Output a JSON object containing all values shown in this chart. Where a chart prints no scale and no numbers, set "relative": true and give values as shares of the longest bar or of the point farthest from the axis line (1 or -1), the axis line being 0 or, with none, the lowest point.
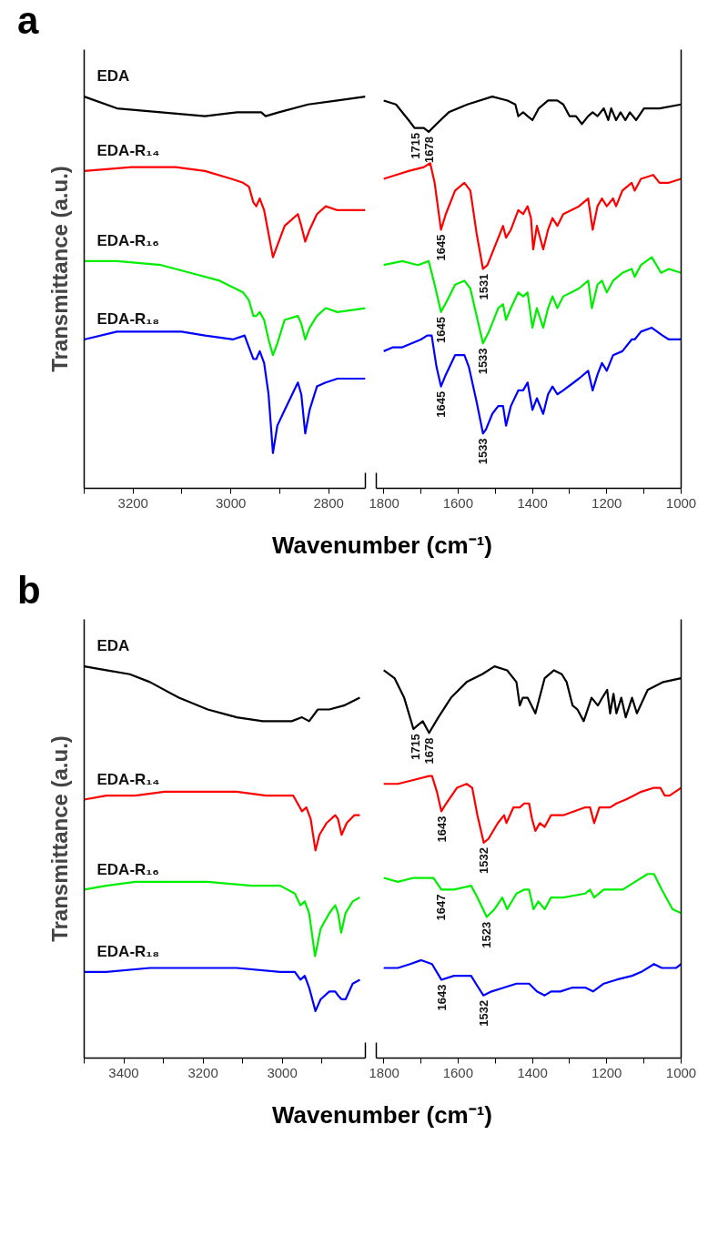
{
  "chart_data": [
    {
      "type": "line",
      "title": "a",
      "ylabel": "Transmittance (a.u.)",
      "xlabel": "Wavenumber (cm⁻¹)",
      "relative": true,
      "xlim": [
        3300,
        2725
      ],
      "xticks": [
        {
          "value": 3300,
          "label": null
        },
        3200,
        {
          "value": 3100,
          "label": null
        },
        3000,
        {
          "value": 2900,
          "label": null
        },
        2800
      ],
      "series": [
        {
          "name": "EDA",
          "color": "#000000",
          "x": [
            3300,
            3233,
            3143,
            3053,
            2987,
            2938,
            2929,
            2902,
            2842,
            2782,
            2725
          ],
          "values": [
            1.0,
            0.97,
            0.96,
            0.95,
            0.96,
            0.96,
            0.95,
            0.96,
            0.98,
            0.99,
            1.0
          ]
        },
        {
          "name": "EDA-R₁₄",
          "color": "#ff0000",
          "x": [
            3300,
            3203,
            3113,
            3053,
            2999,
            2975,
            2963,
            2954,
            2948,
            2941,
            2932,
            2923,
            2914,
            2905,
            2890,
            2863,
            2856,
            2848,
            2839,
            2824,
            2806,
            2782,
            2725
          ],
          "values": [
            0.81,
            0.82,
            0.82,
            0.81,
            0.79,
            0.78,
            0.77,
            0.73,
            0.72,
            0.74,
            0.71,
            0.65,
            0.59,
            0.62,
            0.67,
            0.7,
            0.67,
            0.63,
            0.66,
            0.7,
            0.72,
            0.71,
            0.71
          ]
        },
        {
          "name": "EDA-R₁₆",
          "color": "#00ee00",
          "x": [
            3300,
            3233,
            3143,
            3083,
            3023,
            2975,
            2963,
            2954,
            2948,
            2941,
            2932,
            2923,
            2914,
            2905,
            2890,
            2863,
            2856,
            2848,
            2839,
            2824,
            2806,
            2782,
            2725
          ],
          "values": [
            0.58,
            0.58,
            0.57,
            0.55,
            0.53,
            0.5,
            0.48,
            0.44,
            0.44,
            0.45,
            0.43,
            0.38,
            0.34,
            0.37,
            0.43,
            0.44,
            0.42,
            0.38,
            0.41,
            0.44,
            0.46,
            0.45,
            0.46
          ]
        },
        {
          "name": "EDA-R₁₈",
          "color": "#0000ff",
          "x": [
            3300,
            3233,
            3143,
            3101,
            3053,
            2996,
            2972,
            2963,
            2954,
            2948,
            2941,
            2932,
            2923,
            2914,
            2905,
            2890,
            2863,
            2856,
            2848,
            2839,
            2824,
            2806,
            2782,
            2725
          ],
          "values": [
            0.38,
            0.4,
            0.4,
            0.4,
            0.39,
            0.38,
            0.39,
            0.36,
            0.33,
            0.33,
            0.35,
            0.32,
            0.24,
            0.09,
            0.16,
            0.2,
            0.27,
            0.24,
            0.14,
            0.2,
            0.26,
            0.27,
            0.28,
            0.28
          ]
        }
      ]
    },
    {
      "type": "line",
      "relative": true,
      "xlim": [
        1820,
        1000
      ],
      "xticks": [
        1800,
        {
          "value": 1700,
          "label": null
        },
        1600,
        {
          "value": 1500,
          "label": null
        },
        1400,
        {
          "value": 1300,
          "label": null
        },
        1200,
        {
          "value": 1100,
          "label": null
        },
        1000
      ],
      "series": [
        {
          "color": "#000000",
          "x": [
            1800,
            1767,
            1733,
            1717,
            1704,
            1692,
            1679,
            1658,
            1625,
            1575,
            1508,
            1467,
            1446,
            1438,
            1425,
            1413,
            1400,
            1383,
            1358,
            1333,
            1317,
            1300,
            1283,
            1267,
            1250,
            1238,
            1225,
            1208,
            1196,
            1188,
            1175,
            1163,
            1150,
            1138,
            1121,
            1100,
            1058,
            1000
          ],
          "values": [
            0.99,
            0.98,
            0.94,
            0.92,
            0.92,
            0.92,
            0.91,
            0.93,
            0.96,
            0.98,
            1.0,
            0.99,
            0.98,
            0.95,
            0.96,
            0.95,
            0.94,
            0.97,
            0.99,
            0.99,
            0.98,
            0.95,
            0.95,
            0.93,
            0.95,
            0.96,
            0.95,
            0.97,
            0.94,
            0.97,
            0.94,
            0.96,
            0.94,
            0.96,
            0.94,
            0.97,
            0.97,
            0.98
          ]
        },
        {
          "color": "#ff0000",
          "x": [
            1800,
            1767,
            1733,
            1692,
            1675,
            1663,
            1646,
            1633,
            1608,
            1583,
            1567,
            1550,
            1533,
            1521,
            1500,
            1479,
            1471,
            1458,
            1438,
            1425,
            1413,
            1404,
            1398,
            1388,
            1371,
            1358,
            1346,
            1333,
            1317,
            1275,
            1250,
            1238,
            1225,
            1213,
            1200,
            1183,
            1175,
            1158,
            1133,
            1125,
            1108,
            1075,
            1058,
            1046,
            1033,
            1000
          ],
          "values": [
            0.79,
            0.8,
            0.81,
            0.82,
            0.83,
            0.78,
            0.66,
            0.7,
            0.76,
            0.78,
            0.76,
            0.65,
            0.56,
            0.57,
            0.62,
            0.67,
            0.64,
            0.66,
            0.71,
            0.7,
            0.72,
            0.69,
            0.61,
            0.67,
            0.61,
            0.66,
            0.69,
            0.67,
            0.7,
            0.72,
            0.74,
            0.66,
            0.72,
            0.74,
            0.72,
            0.74,
            0.72,
            0.76,
            0.78,
            0.76,
            0.79,
            0.8,
            0.78,
            0.78,
            0.78,
            0.79
          ]
        },
        {
          "color": "#00ee00",
          "x": [
            1800,
            1750,
            1708,
            1679,
            1663,
            1646,
            1629,
            1608,
            1583,
            1567,
            1550,
            1533,
            1517,
            1492,
            1479,
            1471,
            1458,
            1438,
            1425,
            1413,
            1400,
            1388,
            1371,
            1358,
            1346,
            1333,
            1317,
            1275,
            1250,
            1240,
            1225,
            1213,
            1200,
            1183,
            1158,
            1133,
            1125,
            1108,
            1079,
            1054,
            1033,
            1000
          ],
          "values": [
            0.57,
            0.58,
            0.57,
            0.58,
            0.52,
            0.45,
            0.48,
            0.52,
            0.53,
            0.51,
            0.44,
            0.37,
            0.4,
            0.46,
            0.47,
            0.43,
            0.46,
            0.5,
            0.49,
            0.5,
            0.41,
            0.46,
            0.41,
            0.46,
            0.49,
            0.46,
            0.49,
            0.51,
            0.53,
            0.46,
            0.52,
            0.53,
            0.5,
            0.53,
            0.55,
            0.56,
            0.54,
            0.57,
            0.59,
            0.55,
            0.56,
            0.55
          ]
        },
        {
          "color": "#0000ff",
          "x": [
            1800,
            1775,
            1750,
            1725,
            1700,
            1683,
            1671,
            1658,
            1646,
            1633,
            1608,
            1583,
            1571,
            1550,
            1533,
            1525,
            1508,
            1492,
            1479,
            1471,
            1458,
            1438,
            1425,
            1413,
            1400,
            1388,
            1371,
            1358,
            1346,
            1333,
            1317,
            1275,
            1250,
            1238,
            1225,
            1213,
            1200,
            1183,
            1158,
            1133,
            1125,
            1108,
            1079,
            1050,
            1033,
            1000
          ],
          "values": [
            0.35,
            0.36,
            0.36,
            0.37,
            0.38,
            0.39,
            0.39,
            0.31,
            0.26,
            0.29,
            0.34,
            0.34,
            0.31,
            0.22,
            0.14,
            0.15,
            0.19,
            0.21,
            0.21,
            0.16,
            0.21,
            0.25,
            0.25,
            0.27,
            0.2,
            0.23,
            0.19,
            0.24,
            0.26,
            0.24,
            0.25,
            0.28,
            0.3,
            0.25,
            0.29,
            0.32,
            0.3,
            0.34,
            0.35,
            0.38,
            0.38,
            0.4,
            0.41,
            0.39,
            0.38,
            0.38
          ]
        }
      ],
      "annotations": [
        {
          "text": "1715",
          "x": 1715,
          "y": 0.92
        },
        {
          "text": "1678",
          "x": 1678,
          "y": 0.91
        },
        {
          "text": "1645",
          "x": 1645,
          "y": 0.66
        },
        {
          "text": "1531",
          "x": 1531,
          "y": 0.56
        },
        {
          "text": "1645",
          "x": 1645,
          "y": 0.45
        },
        {
          "text": "1533",
          "x": 1533,
          "y": 0.37
        },
        {
          "text": "1645",
          "x": 1645,
          "y": 0.26
        },
        {
          "text": "1533",
          "x": 1533,
          "y": 0.14
        }
      ]
    },
    {
      "type": "line",
      "title": "b",
      "ylabel": "Transmittance (a.u.)",
      "xlabel": "Wavenumber (cm⁻¹)",
      "relative": true,
      "xlim": [
        3500,
        2790
      ],
      "xticks": [
        {
          "value": 3500,
          "label": null
        },
        3400,
        {
          "value": 3300,
          "label": null
        },
        3200,
        {
          "value": 3100,
          "label": null
        },
        3000,
        {
          "value": 2900,
          "label": null
        }
      ],
      "series": [
        {
          "name": "EDA",
          "color": "#000000",
          "x": [
            3500,
            3444,
            3385,
            3334,
            3261,
            3188,
            3115,
            3049,
            3005,
            2976,
            2950,
            2932,
            2910,
            2881,
            2844,
            2804
          ],
          "values": [
            1.0,
            0.99,
            0.98,
            0.96,
            0.92,
            0.89,
            0.87,
            0.86,
            0.86,
            0.86,
            0.87,
            0.86,
            0.89,
            0.89,
            0.9,
            0.92
          ]
        },
        {
          "name": "EDA-R₁₄",
          "color": "#ff0000",
          "x": [
            3500,
            3444,
            3371,
            3297,
            3224,
            3115,
            3041,
            2990,
            2972,
            2961,
            2950,
            2939,
            2928,
            2916,
            2906,
            2888,
            2866,
            2859,
            2850,
            2837,
            2818,
            2804
          ],
          "values": [
            0.66,
            0.67,
            0.67,
            0.68,
            0.68,
            0.68,
            0.67,
            0.67,
            0.67,
            0.65,
            0.63,
            0.64,
            0.61,
            0.53,
            0.57,
            0.6,
            0.62,
            0.61,
            0.57,
            0.6,
            0.62,
            0.62
          ]
        },
        {
          "name": "EDA-R₁₆",
          "color": "#00ee00",
          "x": [
            3500,
            3444,
            3371,
            3283,
            3188,
            3078,
            3005,
            2968,
            2954,
            2943,
            2932,
            2917,
            2903,
            2881,
            2866,
            2859,
            2851,
            2840,
            2822,
            2804
          ],
          "values": [
            0.43,
            0.44,
            0.45,
            0.45,
            0.45,
            0.44,
            0.44,
            0.42,
            0.39,
            0.4,
            0.37,
            0.26,
            0.33,
            0.37,
            0.39,
            0.37,
            0.32,
            0.37,
            0.4,
            0.41
          ]
        },
        {
          "name": "EDA-R₁₈",
          "color": "#0000ff",
          "x": [
            3500,
            3444,
            3334,
            3224,
            3115,
            3005,
            2968,
            2954,
            2943,
            2932,
            2916,
            2903,
            2881,
            2866,
            2859,
            2850,
            2840,
            2822,
            2804
          ],
          "values": [
            0.22,
            0.22,
            0.23,
            0.23,
            0.23,
            0.22,
            0.22,
            0.2,
            0.21,
            0.18,
            0.12,
            0.15,
            0.17,
            0.17,
            0.16,
            0.15,
            0.15,
            0.19,
            0.2
          ]
        }
      ]
    },
    {
      "type": "line",
      "relative": true,
      "xlim": [
        1820,
        1000
      ],
      "xticks": [
        1800,
        {
          "value": 1700,
          "label": null
        },
        1600,
        {
          "value": 1500,
          "label": null
        },
        1400,
        {
          "value": 1300,
          "label": null
        },
        1200,
        {
          "value": 1100,
          "label": null
        },
        1000
      ],
      "series": [
        {
          "color": "#000000",
          "x": [
            1800,
            1771,
            1745,
            1720,
            1708,
            1695,
            1678,
            1653,
            1619,
            1577,
            1535,
            1502,
            1468,
            1443,
            1434,
            1426,
            1413,
            1392,
            1367,
            1342,
            1321,
            1308,
            1292,
            1279,
            1262,
            1241,
            1224,
            1212,
            1199,
            1191,
            1182,
            1174,
            1161,
            1149,
            1132,
            1119,
            1090,
            1048,
            1000
          ],
          "values": [
            0.99,
            0.97,
            0.92,
            0.84,
            0.85,
            0.86,
            0.83,
            0.87,
            0.92,
            0.96,
            0.98,
            1.0,
            0.99,
            0.96,
            0.9,
            0.92,
            0.92,
            0.88,
            0.97,
            0.99,
            0.98,
            0.96,
            0.9,
            0.89,
            0.86,
            0.92,
            0.9,
            0.92,
            0.94,
            0.88,
            0.93,
            0.88,
            0.92,
            0.87,
            0.92,
            0.88,
            0.94,
            0.96,
            0.97
          ]
        },
        {
          "color": "#ff0000",
          "x": [
            1800,
            1762,
            1720,
            1678,
            1670,
            1657,
            1645,
            1632,
            1603,
            1577,
            1562,
            1548,
            1531,
            1518,
            1493,
            1476,
            1470,
            1451,
            1434,
            1422,
            1409,
            1401,
            1392,
            1380,
            1367,
            1350,
            1329,
            1317,
            1258,
            1245,
            1234,
            1220,
            1203,
            1191,
            1174,
            1149,
            1128,
            1107,
            1073,
            1056,
            1044,
            1031,
            1000
          ],
          "values": [
            0.7,
            0.7,
            0.71,
            0.72,
            0.72,
            0.68,
            0.63,
            0.65,
            0.69,
            0.7,
            0.69,
            0.62,
            0.55,
            0.56,
            0.6,
            0.62,
            0.6,
            0.64,
            0.64,
            0.65,
            0.65,
            0.61,
            0.58,
            0.6,
            0.59,
            0.62,
            0.62,
            0.62,
            0.64,
            0.64,
            0.6,
            0.64,
            0.64,
            0.64,
            0.65,
            0.66,
            0.67,
            0.68,
            0.69,
            0.69,
            0.67,
            0.67,
            0.69
          ]
        },
        {
          "color": "#00ee00",
          "x": [
            1800,
            1762,
            1720,
            1687,
            1666,
            1645,
            1611,
            1565,
            1548,
            1523,
            1502,
            1481,
            1468,
            1443,
            1422,
            1409,
            1397,
            1384,
            1367,
            1350,
            1317,
            1258,
            1245,
            1234,
            1208,
            1182,
            1157,
            1124,
            1090,
            1073,
            1052,
            1023,
            1000
          ],
          "values": [
            0.46,
            0.45,
            0.46,
            0.46,
            0.46,
            0.43,
            0.43,
            0.44,
            0.41,
            0.36,
            0.38,
            0.41,
            0.38,
            0.42,
            0.43,
            0.43,
            0.38,
            0.4,
            0.38,
            0.41,
            0.41,
            0.42,
            0.43,
            0.41,
            0.43,
            0.43,
            0.43,
            0.45,
            0.47,
            0.47,
            0.43,
            0.38,
            0.37
          ]
        },
        {
          "color": "#0000ff",
          "x": [
            1800,
            1762,
            1729,
            1699,
            1670,
            1645,
            1611,
            1565,
            1552,
            1532,
            1510,
            1476,
            1443,
            1422,
            1409,
            1388,
            1367,
            1350,
            1325,
            1292,
            1258,
            1237,
            1208,
            1174,
            1132,
            1107,
            1073,
            1052,
            1031,
            1014,
            1000
          ],
          "values": [
            0.23,
            0.23,
            0.24,
            0.25,
            0.24,
            0.2,
            0.21,
            0.21,
            0.19,
            0.16,
            0.17,
            0.18,
            0.19,
            0.19,
            0.19,
            0.17,
            0.16,
            0.17,
            0.17,
            0.18,
            0.18,
            0.17,
            0.19,
            0.2,
            0.21,
            0.22,
            0.24,
            0.23,
            0.23,
            0.23,
            0.24
          ]
        }
      ],
      "annotations": [
        {
          "text": "1715",
          "x": 1715,
          "y": 0.84
        },
        {
          "text": "1678",
          "x": 1678,
          "y": 0.83
        },
        {
          "text": "1643",
          "x": 1643,
          "y": 0.63
        },
        {
          "text": "1532",
          "x": 1532,
          "y": 0.55
        },
        {
          "text": "1647",
          "x": 1647,
          "y": 0.43
        },
        {
          "text": "1523",
          "x": 1523,
          "y": 0.36
        },
        {
          "text": "1643",
          "x": 1643,
          "y": 0.2
        },
        {
          "text": "1532",
          "x": 1532,
          "y": 0.16
        }
      ]
    }
  ]
}
